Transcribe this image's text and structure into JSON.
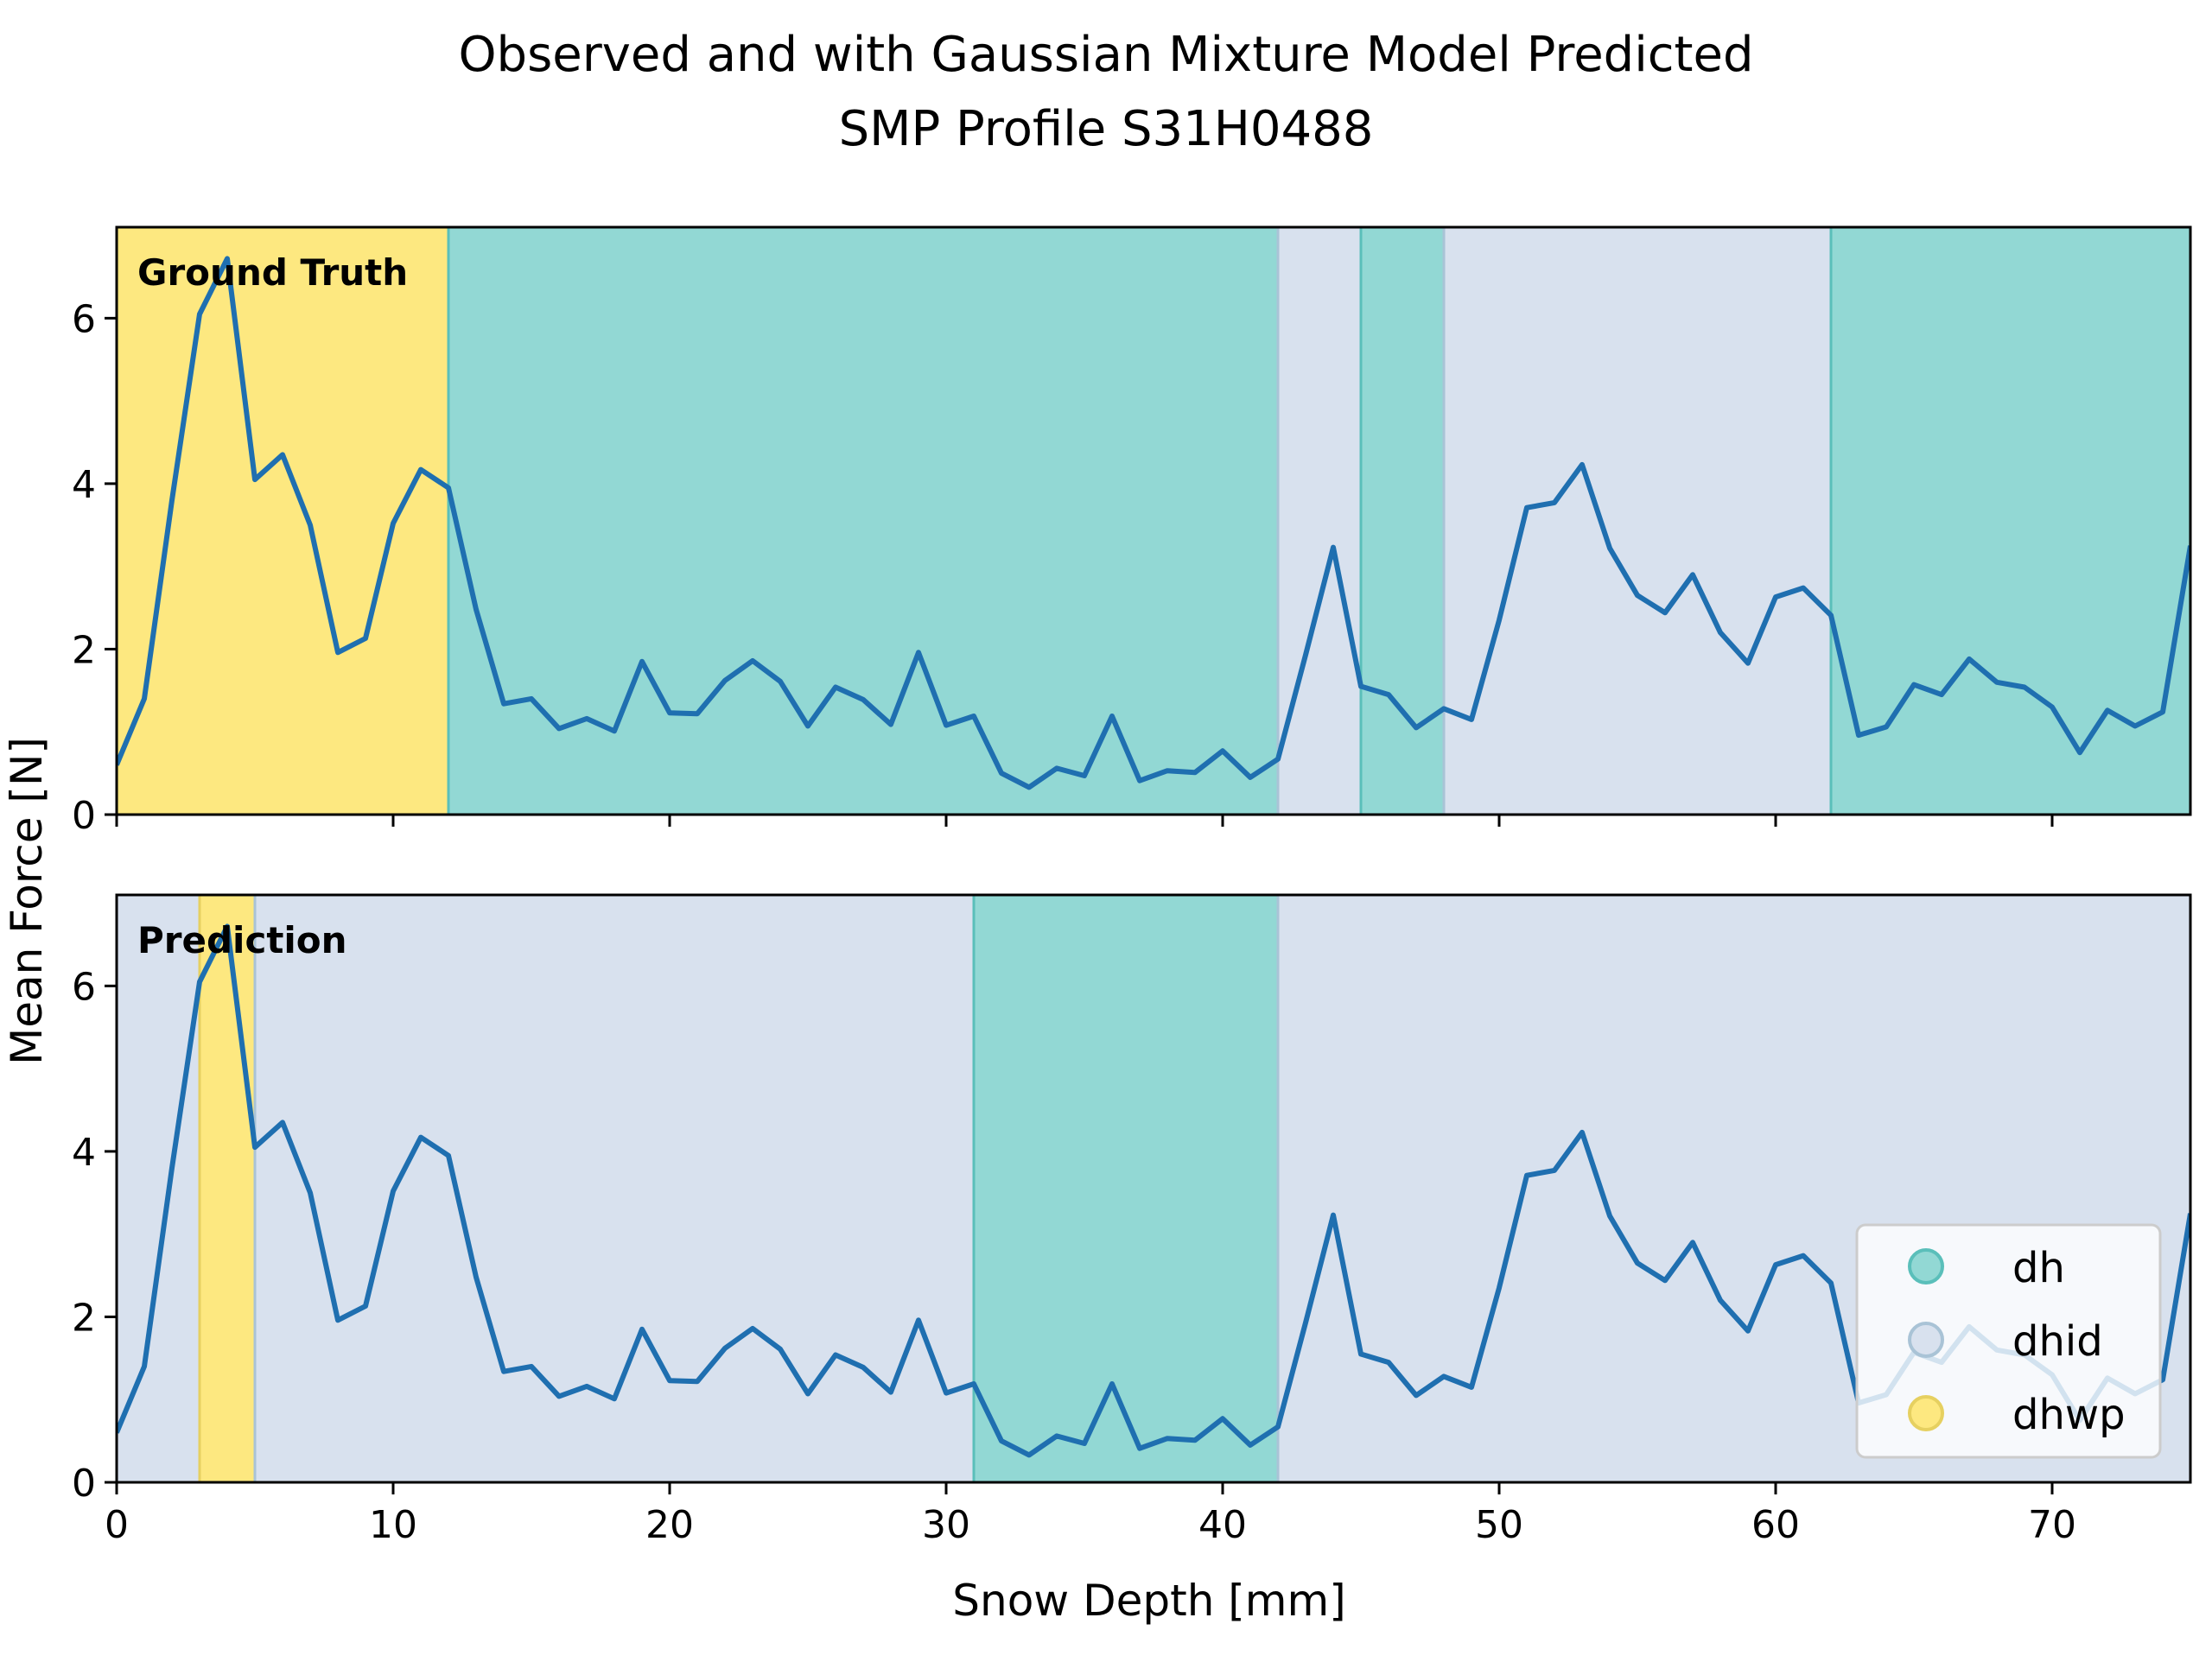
{
  "title_line1": "Observed and with Gaussian Mixture Model Predicted",
  "title_line2": "SMP Profile S31H0488",
  "xlabel": "Snow Depth [mm]",
  "ylabel": "Mean Force [N]",
  "colors": {
    "dh": "#92d8d4",
    "dh_edge": "#5abfba",
    "dhid": "#d8e1ee",
    "dhid_edge": "#a9c3d6",
    "dhwp": "#fde880",
    "dhwp_edge": "#e6d060",
    "line": "#1f6fb0"
  },
  "legend": {
    "placement": "lower right (bottom panel)",
    "items": [
      {
        "key": "dh",
        "label": "dh"
      },
      {
        "key": "dhid",
        "label": "dhid"
      },
      {
        "key": "dhwp",
        "label": "dhwp"
      }
    ]
  },
  "chart_data": {
    "type": "line",
    "xlim": [
      0,
      75
    ],
    "ylim": [
      0,
      7.1
    ],
    "xticks": [
      0,
      10,
      20,
      30,
      40,
      50,
      60,
      70
    ],
    "yticks": [
      0,
      2,
      4,
      6
    ],
    "x": [
      0,
      1,
      2,
      3,
      4,
      5,
      6,
      7,
      8,
      9,
      10,
      11,
      12,
      13,
      14,
      15,
      16,
      17,
      18,
      19,
      20,
      21,
      22,
      23,
      24,
      25,
      26,
      27,
      28,
      29,
      30,
      31,
      32,
      33,
      34,
      35,
      36,
      37,
      38,
      39,
      40,
      41,
      42,
      43,
      44,
      45,
      46,
      47,
      48,
      49,
      50,
      51,
      52,
      53,
      54,
      55,
      56,
      57,
      58,
      59,
      60,
      61,
      62,
      63,
      64,
      65,
      66,
      67,
      68,
      69,
      70,
      71,
      72,
      73,
      74,
      75
    ],
    "y": [
      0.6,
      1.4,
      3.8,
      6.05,
      6.72,
      4.05,
      4.35,
      3.5,
      1.96,
      2.13,
      3.52,
      4.17,
      3.95,
      2.48,
      1.34,
      1.4,
      1.04,
      1.16,
      1.01,
      1.85,
      1.23,
      1.22,
      1.62,
      1.86,
      1.61,
      1.07,
      1.54,
      1.39,
      1.09,
      1.96,
      1.08,
      1.19,
      0.5,
      0.33,
      0.56,
      0.47,
      1.19,
      0.41,
      0.53,
      0.51,
      0.77,
      0.45,
      0.67,
      1.93,
      3.23,
      1.55,
      1.45,
      1.05,
      1.28,
      1.15,
      2.35,
      3.71,
      3.77,
      4.23,
      3.22,
      2.65,
      2.44,
      2.9,
      2.2,
      1.83,
      2.63,
      2.74,
      2.41,
      0.96,
      1.06,
      1.57,
      1.45,
      1.88,
      1.6,
      1.54,
      1.3,
      0.75,
      1.26,
      1.07,
      1.24,
      3.25
    ],
    "panels": [
      {
        "label": "Ground Truth",
        "segments": [
          {
            "start": 0,
            "end": 12,
            "class": "dhwp"
          },
          {
            "start": 12,
            "end": 42,
            "class": "dh"
          },
          {
            "start": 42,
            "end": 45,
            "class": "dhid"
          },
          {
            "start": 45,
            "end": 48,
            "class": "dh"
          },
          {
            "start": 48,
            "end": 62,
            "class": "dhid"
          },
          {
            "start": 62,
            "end": 75,
            "class": "dh"
          }
        ]
      },
      {
        "label": "Prediction",
        "segments": [
          {
            "start": 0,
            "end": 3,
            "class": "dhid"
          },
          {
            "start": 3,
            "end": 5,
            "class": "dhwp"
          },
          {
            "start": 5,
            "end": 31,
            "class": "dhid"
          },
          {
            "start": 31,
            "end": 42,
            "class": "dh"
          },
          {
            "start": 42,
            "end": 75,
            "class": "dhid"
          }
        ]
      }
    ]
  }
}
